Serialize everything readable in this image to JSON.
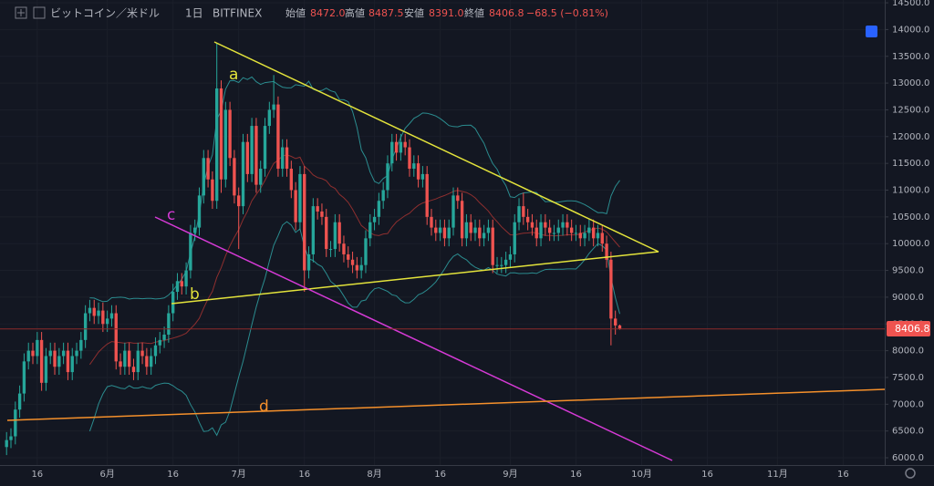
{
  "header": {
    "symbol": "ビットコイン／米ドル",
    "interval": "1日",
    "exchange": "BITFINEX",
    "open_label": "始値",
    "open": "8472.0",
    "high_label": "高値",
    "high": "8487.5",
    "low_label": "安値",
    "low": "8391.0",
    "close_label": "終値",
    "close": "8406.8",
    "change": "−68.5 (−0.81%)"
  },
  "chart_data": {
    "type": "candlestick",
    "up_color": "#26a69a",
    "down_color": "#ef5350",
    "grid": true,
    "ylim": [
      5864,
      14552
    ],
    "yticks": [
      {
        "value": 6000,
        "label": "6000.0"
      },
      {
        "value": 6500,
        "label": "6500.0"
      },
      {
        "value": 7000,
        "label": "7000.0"
      },
      {
        "value": 7500,
        "label": "7500.0"
      },
      {
        "value": 8000,
        "label": "8000.0"
      },
      {
        "value": 8500,
        "label": "8500.0"
      },
      {
        "value": 9000,
        "label": "9000.0"
      },
      {
        "value": 9500,
        "label": "9500.0"
      },
      {
        "value": 10000,
        "label": "10000.0"
      },
      {
        "value": 10500,
        "label": "10500.0"
      },
      {
        "value": 11000,
        "label": "11000.0"
      },
      {
        "value": 11500,
        "label": "11500.0"
      },
      {
        "value": 12000,
        "label": "12000.0"
      },
      {
        "value": 12500,
        "label": "12500.0"
      },
      {
        "value": 13000,
        "label": "13000.0"
      },
      {
        "value": 13500,
        "label": "13500.0"
      },
      {
        "value": 14000,
        "label": "14000.0"
      },
      {
        "value": 14500,
        "label": "14500.0"
      }
    ],
    "annotations": [
      "a",
      "b",
      "c",
      "d"
    ],
    "categories": [
      null,
      null,
      null,
      null,
      null,
      null,
      null,
      null,
      "16",
      null,
      null,
      null,
      null,
      null,
      null,
      null,
      null,
      null,
      null,
      null,
      null,
      null,
      null,
      null,
      "6月",
      null,
      null,
      null,
      null,
      null,
      null,
      null,
      null,
      null,
      null,
      null,
      null,
      null,
      null,
      "16",
      null,
      null,
      null,
      null,
      null,
      null,
      null,
      null,
      null,
      null,
      null,
      null,
      null,
      null,
      "7月",
      null,
      null,
      null,
      null,
      null,
      null,
      null,
      null,
      null,
      null,
      null,
      null,
      null,
      null,
      "16",
      null,
      null,
      null,
      null,
      null,
      null,
      null,
      null,
      null,
      null,
      null,
      null,
      null,
      null,
      null,
      "8月",
      null,
      null,
      null,
      null,
      null,
      null,
      null,
      null,
      null,
      null,
      null,
      null,
      null,
      null,
      "16",
      null,
      null,
      null,
      null,
      null,
      null,
      null,
      null,
      null,
      null,
      null,
      null,
      null,
      null,
      null,
      "9月",
      null,
      null,
      null,
      null,
      null,
      null,
      null,
      null,
      null,
      null,
      null,
      null,
      null,
      null,
      "16",
      null,
      null,
      null,
      null,
      null,
      null,
      null,
      null,
      null,
      null,
      null,
      null,
      null,
      null,
      "10月",
      null,
      null,
      null,
      null,
      null,
      null,
      null,
      null,
      null,
      null,
      null,
      null,
      null,
      null,
      "16",
      null,
      null,
      null,
      null,
      null,
      null,
      null,
      null,
      null,
      null,
      null,
      null,
      null,
      null,
      null,
      "11月",
      null,
      null,
      null,
      null,
      null,
      null,
      null,
      null,
      null,
      null,
      null,
      null,
      null,
      null,
      "16",
      null,
      null,
      null,
      null,
      null,
      null,
      null,
      null,
      null
    ],
    "open": [
      null,
      6200,
      6330,
      6400,
      6900,
      7200,
      7800,
      8000,
      7900,
      8200,
      7400,
      7900,
      8000,
      7700,
      7900,
      8000,
      7600,
      7900,
      8000,
      8200,
      8700,
      8800,
      8650,
      8750,
      8500,
      8600,
      8700,
      7800,
      7700,
      8000,
      7700,
      7600,
      8000,
      7900,
      7700,
      7900,
      8100,
      8200,
      8300,
      8700,
      9100,
      9300,
      9200,
      9500,
      10200,
      10300,
      10900,
      11600,
      11200,
      10800,
      12900,
      11200,
      12500,
      11600,
      10900,
      10700,
      11900,
      11300,
      12200,
      11100,
      11400,
      12200,
      12500,
      12600,
      11400,
      11800,
      11400,
      11000,
      10400,
      11300,
      9500,
      9800,
      10700,
      10600,
      10500,
      9900,
      9900,
      10400,
      10000,
      9800,
      9700,
      9600,
      9500,
      9600,
      10100,
      10400,
      10500,
      10800,
      11000,
      11500,
      11900,
      11700,
      11900,
      11800,
      11400,
      11500,
      11200,
      11300,
      10500,
      10300,
      10200,
      10300,
      10100,
      10300,
      10900,
      10800,
      10100,
      10400,
      10200,
      10300,
      10100,
      10200,
      10300,
      9600,
      9600,
      9600,
      9700,
      9800,
      10400,
      10700,
      10500,
      10400,
      10300,
      10100,
      10400,
      10300,
      10200,
      10200,
      10300,
      10400,
      10300,
      10200,
      10200,
      10100,
      10200,
      10300,
      10100,
      10200,
      10000,
      9700,
      8600,
      8472,
      null,
      null,
      null,
      null,
      null,
      null,
      null,
      null,
      null,
      null,
      null,
      null,
      null,
      null,
      null,
      null,
      null,
      null,
      null,
      null,
      null,
      null,
      null,
      null,
      null,
      null,
      null,
      null,
      null,
      null,
      null,
      null,
      null,
      null,
      null,
      null,
      null,
      null,
      null,
      null,
      null,
      null,
      null,
      null,
      null,
      null,
      null,
      null,
      null,
      null,
      null,
      null,
      null,
      null,
      null,
      null,
      null,
      null,
      null,
      null
    ],
    "high": [
      null,
      6480,
      6550,
      7050,
      7350,
      7950,
      8150,
      8150,
      8350,
      8350,
      8050,
      8150,
      8150,
      8050,
      8150,
      8150,
      8050,
      8150,
      8350,
      8850,
      8950,
      8950,
      8900,
      8900,
      8750,
      8850,
      8850,
      7950,
      8150,
      8150,
      7850,
      8150,
      8150,
      8050,
      8050,
      8250,
      8350,
      8450,
      8850,
      9250,
      9450,
      9450,
      9650,
      10350,
      10450,
      11050,
      11750,
      11750,
      11350,
      13750,
      13050,
      12650,
      12650,
      11750,
      11050,
      12050,
      12050,
      12350,
      12350,
      11550,
      12350,
      12650,
      13150,
      12750,
      11950,
      11950,
      11550,
      11150,
      11450,
      11450,
      9950,
      10850,
      10850,
      10750,
      10650,
      10050,
      10550,
      10550,
      10150,
      9950,
      9850,
      9750,
      9750,
      10250,
      10550,
      10650,
      10950,
      11150,
      11650,
      12050,
      12050,
      12050,
      12050,
      11950,
      11650,
      11650,
      11450,
      11450,
      10650,
      10450,
      10450,
      10450,
      10450,
      11050,
      11050,
      10950,
      10550,
      10550,
      10450,
      10450,
      10350,
      10450,
      10450,
      9750,
      9750,
      9850,
      9950,
      10550,
      10850,
      10950,
      10650,
      10550,
      10450,
      10550,
      10550,
      10450,
      10350,
      10450,
      10550,
      10550,
      10450,
      10350,
      10350,
      10350,
      10450,
      10450,
      10350,
      10350,
      10150,
      9850,
      8750,
      8487.5,
      null,
      null,
      null,
      null,
      null,
      null,
      null,
      null,
      null,
      null,
      null,
      null,
      null,
      null,
      null,
      null,
      null,
      null,
      null,
      null,
      null,
      null,
      null,
      null,
      null,
      null,
      null,
      null,
      null,
      null,
      null,
      null,
      null,
      null,
      null,
      null,
      null,
      null,
      null,
      null,
      null,
      null,
      null,
      null,
      null,
      null,
      null,
      null,
      null,
      null,
      null,
      null,
      null,
      null,
      null,
      null,
      null,
      null,
      null,
      null
    ],
    "low": [
      null,
      6050,
      6180,
      6250,
      6750,
      7050,
      7650,
      7750,
      7750,
      7250,
      7250,
      7750,
      7550,
      7550,
      7750,
      7450,
      7450,
      7750,
      7850,
      8050,
      8550,
      8500,
      8500,
      8350,
      8350,
      8450,
      7650,
      7550,
      7550,
      7550,
      7450,
      7450,
      7750,
      7550,
      7550,
      7750,
      7950,
      8050,
      8150,
      8550,
      8950,
      9050,
      9050,
      9350,
      10050,
      10150,
      10750,
      11050,
      10650,
      10650,
      10950,
      11050,
      11450,
      10750,
      9900,
      10550,
      11150,
      11150,
      10950,
      10950,
      11250,
      12050,
      12350,
      11250,
      11250,
      11250,
      10850,
      10250,
      10250,
      9100,
      9350,
      9650,
      10450,
      10350,
      9750,
      9750,
      9750,
      9850,
      9650,
      9550,
      9450,
      9350,
      9350,
      9450,
      9950,
      10250,
      10350,
      10650,
      10850,
      11350,
      11550,
      11550,
      11650,
      11250,
      11250,
      11050,
      11050,
      10350,
      10150,
      10050,
      10050,
      9950,
      9950,
      10150,
      10650,
      9950,
      9950,
      10050,
      10050,
      9950,
      9950,
      10050,
      9450,
      9450,
      9450,
      9450,
      9550,
      9650,
      10250,
      10350,
      10250,
      10150,
      9950,
      9950,
      10150,
      10050,
      10050,
      10050,
      10150,
      10150,
      10050,
      10050,
      9950,
      9950,
      10050,
      9950,
      9950,
      9850,
      9550,
      8100,
      8300,
      8391,
      null,
      null,
      null,
      null,
      null,
      null,
      null,
      null,
      null,
      null,
      null,
      null,
      null,
      null,
      null,
      null,
      null,
      null,
      null,
      null,
      null,
      null,
      null,
      null,
      null,
      null,
      null,
      null,
      null,
      null,
      null,
      null,
      null,
      null,
      null,
      null,
      null,
      null,
      null,
      null,
      null,
      null,
      null,
      null,
      null,
      null,
      null,
      null,
      null,
      null,
      null,
      null,
      null,
      null,
      null,
      null,
      null,
      null,
      null,
      null
    ],
    "close": [
      null,
      6330,
      6400,
      6900,
      7200,
      7800,
      8000,
      7900,
      8200,
      7400,
      7900,
      8000,
      7700,
      7900,
      8000,
      7600,
      7900,
      8000,
      8200,
      8700,
      8800,
      8650,
      8750,
      8500,
      8600,
      8700,
      7800,
      7700,
      8000,
      7700,
      7600,
      8000,
      7900,
      7700,
      7900,
      8100,
      8200,
      8300,
      8700,
      9100,
      9300,
      9200,
      9500,
      10200,
      10300,
      10900,
      11600,
      11200,
      10800,
      12900,
      11200,
      12500,
      11600,
      10900,
      10700,
      11900,
      11300,
      12200,
      11100,
      11400,
      12200,
      12500,
      12600,
      11400,
      11800,
      11400,
      11000,
      10400,
      11300,
      9500,
      9800,
      10700,
      10600,
      10500,
      9900,
      9900,
      10400,
      10000,
      9800,
      9700,
      9600,
      9500,
      9600,
      10100,
      10400,
      10500,
      10800,
      11000,
      11500,
      11900,
      11700,
      11900,
      11800,
      11400,
      11500,
      11200,
      11300,
      10500,
      10300,
      10200,
      10300,
      10100,
      10300,
      10900,
      10800,
      10100,
      10400,
      10200,
      10300,
      10100,
      10200,
      10300,
      9600,
      9600,
      9600,
      9700,
      9800,
      10400,
      10700,
      10500,
      10400,
      10300,
      10100,
      10400,
      10300,
      10200,
      10200,
      10300,
      10400,
      10300,
      10200,
      10200,
      10100,
      10200,
      10300,
      10100,
      10200,
      10000,
      9700,
      8600,
      8472,
      8406.8,
      null,
      null,
      null,
      null,
      null,
      null,
      null,
      null,
      null,
      null,
      null,
      null,
      null,
      null,
      null,
      null,
      null,
      null,
      null,
      null,
      null,
      null,
      null,
      null,
      null,
      null,
      null,
      null,
      null,
      null,
      null,
      null,
      null,
      null,
      null,
      null,
      null,
      null,
      null,
      null,
      null,
      null,
      null,
      null,
      null,
      null,
      null,
      null,
      null,
      null,
      null,
      null,
      null,
      null,
      null,
      null,
      null,
      null,
      null,
      null
    ]
  }
}
